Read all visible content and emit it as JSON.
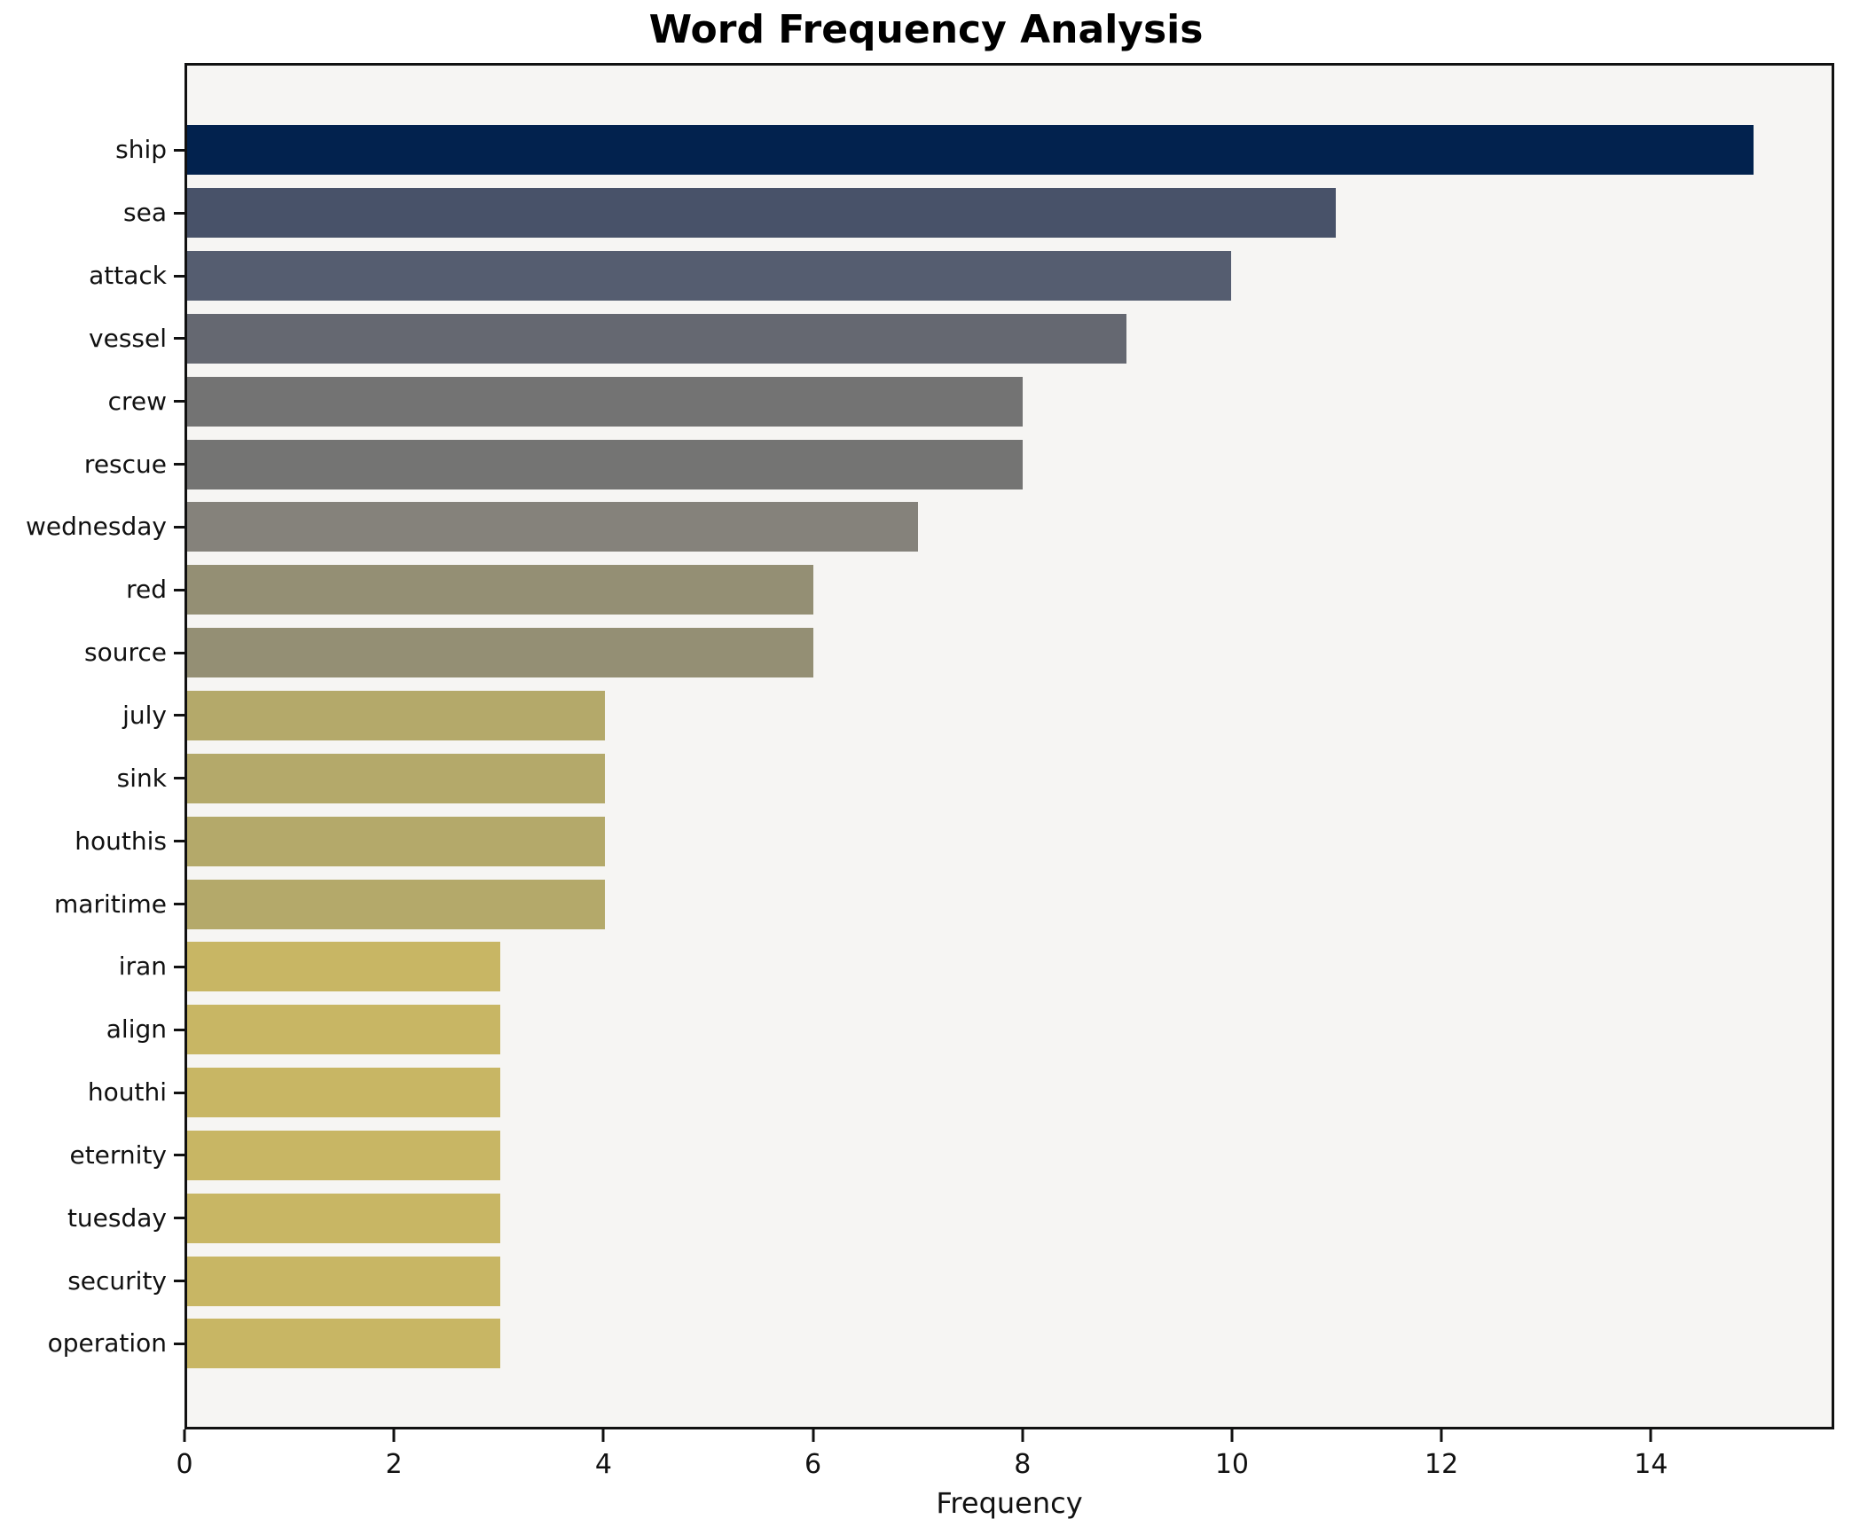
{
  "chart_data": {
    "type": "bar",
    "orientation": "horizontal",
    "title": "Word Frequency Analysis",
    "xlabel": "Frequency",
    "ylabel": "",
    "categories": [
      "ship",
      "sea",
      "attack",
      "vessel",
      "crew",
      "rescue",
      "wednesday",
      "red",
      "source",
      "july",
      "sink",
      "houthis",
      "maritime",
      "iran",
      "align",
      "houthi",
      "eternity",
      "tuesday",
      "security",
      "operation"
    ],
    "values": [
      15,
      11,
      10,
      9,
      8,
      8,
      7,
      6,
      6,
      4,
      4,
      4,
      4,
      3,
      3,
      3,
      3,
      3,
      3,
      3
    ],
    "bar_colors": [
      "#02224e",
      "#485269",
      "#555d70",
      "#656871",
      "#737373",
      "#747473",
      "#85827b",
      "#948f74",
      "#948f74",
      "#b4a96a",
      "#b4a96a",
      "#b4a96a",
      "#b4a96a",
      "#c8b664",
      "#c8b664",
      "#c8b664",
      "#c8b664",
      "#c8b664",
      "#c8b664",
      "#c8b664"
    ],
    "xlim": [
      0,
      15.75
    ],
    "xticks": [
      0,
      2,
      4,
      6,
      8,
      10,
      12,
      14
    ],
    "grid": false,
    "legend_position": "none",
    "plot_background": "#f6f5f3",
    "figure_background": "#ffffff",
    "spine_color": "#111111",
    "text_color": "#111111"
  }
}
